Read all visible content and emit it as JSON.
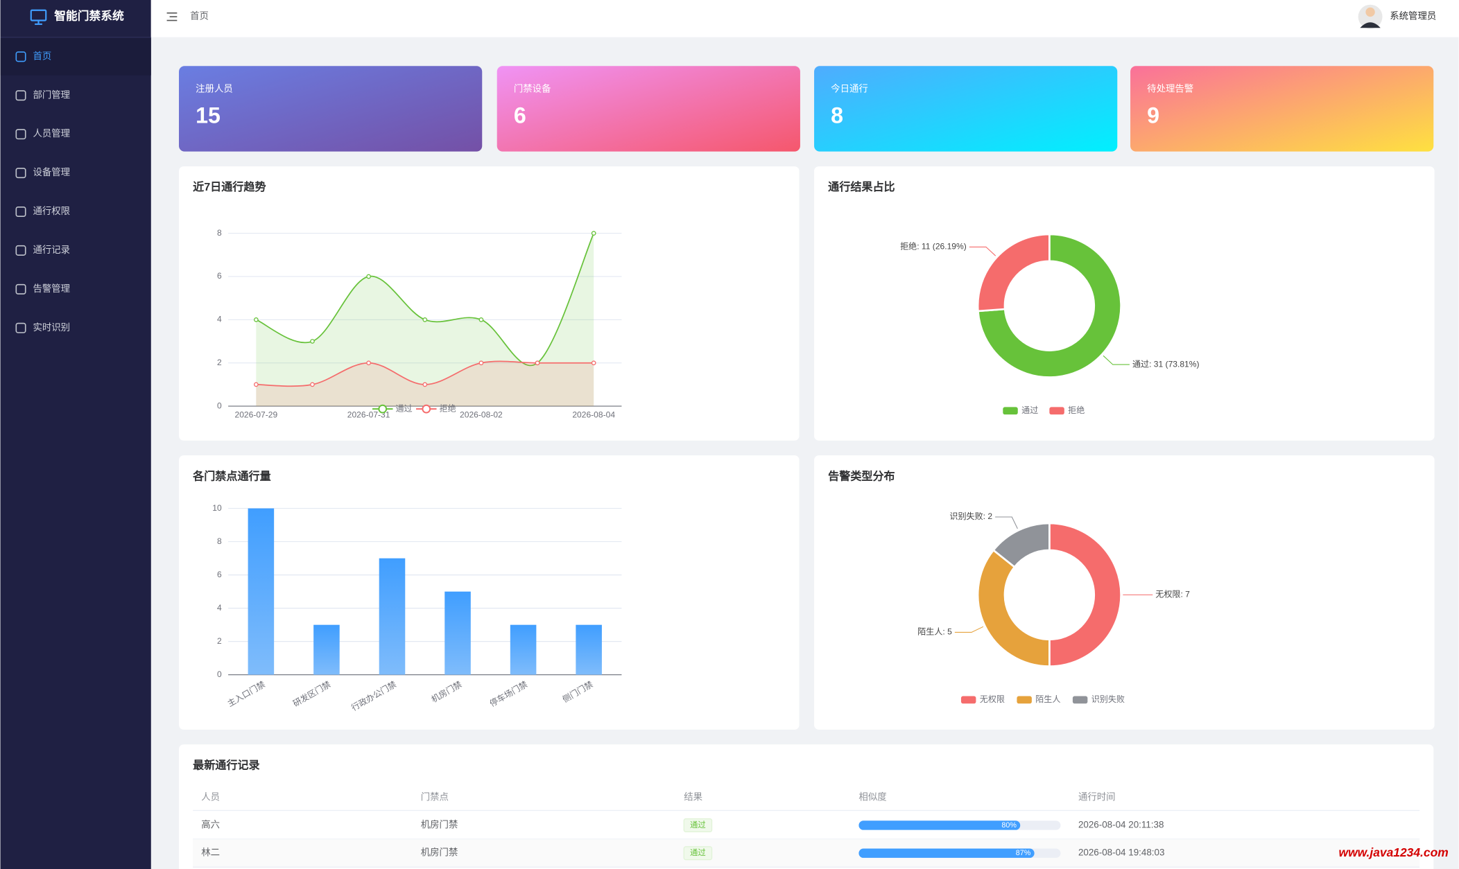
{
  "sidebar": {
    "brand": "智能门禁系统",
    "menu": [
      "首页",
      "部门管理",
      "人员管理",
      "设备管理",
      "通行权限",
      "通行记录",
      "告警管理",
      "实时识别"
    ]
  },
  "header": {
    "breadcrumb": "首页",
    "user": "系统管理员"
  },
  "stats": [
    {
      "label": "注册人员",
      "value": 15
    },
    {
      "label": "门禁设备",
      "value": 6
    },
    {
      "label": "今日通行",
      "value": 8
    },
    {
      "label": "待处理告警",
      "value": 9
    }
  ],
  "chart_data": [
    {
      "type": "line",
      "title": "近7日通行趋势",
      "categories": [
        "2026-07-29",
        null,
        "2026-07-31",
        null,
        "2026-08-02",
        null,
        "2026-08-04"
      ],
      "series": [
        {
          "name": "通过",
          "color": "#67c23a",
          "values": [
            4,
            3,
            6,
            4,
            4,
            2,
            8
          ]
        },
        {
          "name": "拒绝",
          "color": "#f56c6c",
          "values": [
            1,
            1,
            2,
            1,
            2,
            2,
            2
          ]
        }
      ],
      "ylim": [
        0,
        8
      ],
      "yticks": [
        0,
        2,
        4,
        6,
        8
      ],
      "grid": true,
      "legend": "bottom"
    },
    {
      "type": "pie",
      "title": "通行结果占比",
      "categories": [
        "通过",
        "拒绝"
      ],
      "values": [
        31,
        11
      ],
      "value_labels": [
        "通过: 31 (73.81%)",
        "拒绝: 11 (26.19%)"
      ],
      "colors": [
        "#67c23a",
        "#f56c6c"
      ],
      "legend": "bottom"
    },
    {
      "type": "bar",
      "title": "各门禁点通行量",
      "categories": [
        "主入口门禁",
        "研发区门禁",
        "行政办公门禁",
        "机房门禁",
        "停车场门禁",
        "侧门门禁"
      ],
      "values": [
        10,
        3,
        7,
        5,
        3,
        3
      ],
      "color": "#409eff",
      "ylim": [
        0,
        10
      ],
      "yticks": [
        0,
        2,
        4,
        6,
        8,
        10
      ],
      "grid": true
    },
    {
      "type": "pie",
      "title": "告警类型分布",
      "categories": [
        "无权限",
        "陌生人",
        "识别失败"
      ],
      "values": [
        7,
        5,
        2
      ],
      "value_labels": [
        "无权限: 7",
        "陌生人: 5",
        "识别失败: 2"
      ],
      "colors": [
        "#f56c6c",
        "#e6a23c",
        "#909399"
      ],
      "legend": "bottom"
    }
  ],
  "table": {
    "title": "最新通行记录",
    "headers": [
      "人员",
      "门禁点",
      "结果",
      "相似度",
      "通行时间"
    ],
    "rows": [
      [
        "高六",
        "机房门禁",
        "通过",
        {
          "value": 80,
          "label": "80%"
        },
        "2026-08-04 20:11:38"
      ],
      [
        "林二",
        "机房门禁",
        "通过",
        {
          "value": 87,
          "label": "87%"
        },
        "2026-08-04 19:48:03"
      ]
    ]
  },
  "watermark": "www.java1234.com"
}
